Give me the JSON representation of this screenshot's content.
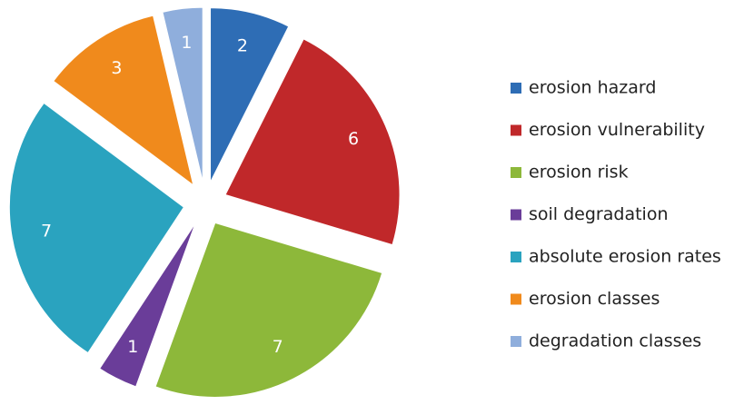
{
  "chart_data": {
    "type": "pie",
    "categories": [
      "erosion hazard",
      "erosion vulnerability",
      "erosion risk",
      "soil degradation",
      "absolute erosion rates",
      "erosion classes",
      "degradation classes"
    ],
    "values": [
      2,
      6,
      7,
      1,
      7,
      3,
      1
    ],
    "colors": [
      "#2e6db5",
      "#c0282a",
      "#8db83a",
      "#6a3d99",
      "#2aa3bf",
      "#f08a1c",
      "#8faedc"
    ],
    "exploded": true,
    "legend": "right"
  }
}
